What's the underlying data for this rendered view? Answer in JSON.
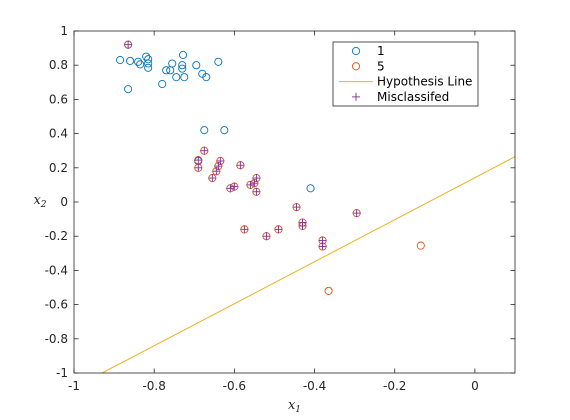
{
  "chart_data": {
    "type": "scatter",
    "title": "",
    "xlabel": "x",
    "xlabel_sub": "1",
    "ylabel": "x",
    "ylabel_sub": "2",
    "xlim": [
      -1,
      0.1
    ],
    "ylim": [
      -1,
      1
    ],
    "xticks": [
      -1,
      -0.8,
      -0.6,
      -0.4,
      -0.2,
      0
    ],
    "xtick_labels": [
      "-1",
      "-0.8",
      "-0.6",
      "-0.4",
      "-0.2",
      "0"
    ],
    "yticks": [
      -1,
      -0.8,
      -0.6,
      -0.4,
      -0.2,
      0,
      0.2,
      0.4,
      0.6,
      0.8,
      1
    ],
    "ytick_labels": [
      "-1",
      "-0.8",
      "-0.6",
      "-0.4",
      "-0.2",
      "0",
      "0.2",
      "0.4",
      "0.6",
      "0.8",
      "1"
    ],
    "grid": false,
    "legend_position": "top-right",
    "colors": {
      "series1": "#0072BD",
      "series5": "#D95319",
      "hypothesis": "#EDB120",
      "misclassified": "#7E2F8E",
      "axis": "#262626"
    },
    "series": [
      {
        "name": "1",
        "marker": "circle",
        "points": [
          [
            -0.865,
            0.92
          ],
          [
            -0.885,
            0.83
          ],
          [
            -0.86,
            0.825
          ],
          [
            -0.84,
            0.82
          ],
          [
            -0.835,
            0.805
          ],
          [
            -0.82,
            0.85
          ],
          [
            -0.815,
            0.835
          ],
          [
            -0.815,
            0.81
          ],
          [
            -0.815,
            0.785
          ],
          [
            -0.77,
            0.77
          ],
          [
            -0.76,
            0.77
          ],
          [
            -0.755,
            0.81
          ],
          [
            -0.745,
            0.73
          ],
          [
            -0.73,
            0.8
          ],
          [
            -0.73,
            0.78
          ],
          [
            -0.728,
            0.86
          ],
          [
            -0.725,
            0.73
          ],
          [
            -0.695,
            0.8
          ],
          [
            -0.68,
            0.75
          ],
          [
            -0.67,
            0.73
          ],
          [
            -0.64,
            0.82
          ],
          [
            -0.78,
            0.69
          ],
          [
            -0.865,
            0.66
          ],
          [
            -0.69,
            0.24
          ],
          [
            -0.675,
            0.42
          ],
          [
            -0.625,
            0.42
          ],
          [
            -0.41,
            0.08
          ]
        ]
      },
      {
        "name": "5",
        "marker": "circle",
        "points": [
          [
            -0.865,
            0.92
          ],
          [
            -0.69,
            0.2
          ],
          [
            -0.69,
            0.245
          ],
          [
            -0.675,
            0.3
          ],
          [
            -0.655,
            0.14
          ],
          [
            -0.645,
            0.18
          ],
          [
            -0.64,
            0.21
          ],
          [
            -0.635,
            0.24
          ],
          [
            -0.61,
            0.08
          ],
          [
            -0.6,
            0.09
          ],
          [
            -0.585,
            0.215
          ],
          [
            -0.575,
            -0.16
          ],
          [
            -0.56,
            0.1
          ],
          [
            -0.55,
            0.11
          ],
          [
            -0.545,
            0.14
          ],
          [
            -0.545,
            0.06
          ],
          [
            -0.52,
            -0.2
          ],
          [
            -0.49,
            -0.16
          ],
          [
            -0.445,
            -0.03
          ],
          [
            -0.43,
            -0.12
          ],
          [
            -0.43,
            -0.14
          ],
          [
            -0.38,
            -0.225
          ],
          [
            -0.38,
            -0.26
          ],
          [
            -0.365,
            -0.52
          ],
          [
            -0.295,
            -0.065
          ],
          [
            -0.135,
            -0.255
          ]
        ]
      },
      {
        "name": "Hypothesis Line",
        "marker": "line",
        "points": [
          [
            -0.93,
            -1.0
          ],
          [
            0.1,
            0.265
          ]
        ]
      },
      {
        "name": "Misclassifed",
        "marker": "plus",
        "points": [
          [
            -0.865,
            0.92
          ],
          [
            -0.69,
            0.2
          ],
          [
            -0.69,
            0.245
          ],
          [
            -0.675,
            0.3
          ],
          [
            -0.655,
            0.14
          ],
          [
            -0.645,
            0.18
          ],
          [
            -0.64,
            0.21
          ],
          [
            -0.635,
            0.24
          ],
          [
            -0.61,
            0.08
          ],
          [
            -0.6,
            0.09
          ],
          [
            -0.585,
            0.215
          ],
          [
            -0.575,
            -0.16
          ],
          [
            -0.56,
            0.1
          ],
          [
            -0.55,
            0.11
          ],
          [
            -0.545,
            0.14
          ],
          [
            -0.545,
            0.06
          ],
          [
            -0.52,
            -0.2
          ],
          [
            -0.49,
            -0.16
          ],
          [
            -0.445,
            -0.03
          ],
          [
            -0.43,
            -0.12
          ],
          [
            -0.43,
            -0.14
          ],
          [
            -0.38,
            -0.225
          ],
          [
            -0.38,
            -0.26
          ],
          [
            -0.295,
            -0.065
          ]
        ]
      }
    ]
  }
}
